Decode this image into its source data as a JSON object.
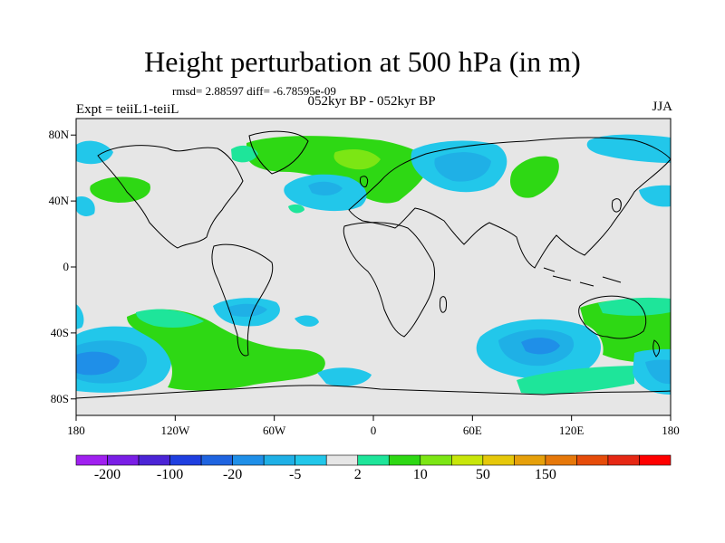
{
  "title": "Height perturbation at 500 hPa (in m)",
  "stats_line": "rmsd= 2.88597 diff= -6.78595e-09",
  "subtitle": "052kyr BP - 052kyr BP",
  "experiment_label": "Expt = teiiL1-teiiL",
  "season_label": "JJA",
  "lat_ticks": [
    {
      "label": "80N",
      "value": 80
    },
    {
      "label": "40N",
      "value": 40
    },
    {
      "label": "0",
      "value": 0
    },
    {
      "label": "40S",
      "value": -40
    },
    {
      "label": "80S",
      "value": -80
    }
  ],
  "lon_ticks": [
    {
      "label": "180",
      "value": -180
    },
    {
      "label": "120W",
      "value": -120
    },
    {
      "label": "60W",
      "value": -60
    },
    {
      "label": "0",
      "value": 0
    },
    {
      "label": "60E",
      "value": 60
    },
    {
      "label": "120E",
      "value": 120
    },
    {
      "label": "180",
      "value": 180
    }
  ],
  "colorbar": {
    "colors": [
      "#a020f0",
      "#7a1ee6",
      "#4b24d6",
      "#1f3fe0",
      "#1f64e0",
      "#1f8fe8",
      "#1fb0e6",
      "#22c7ea",
      "#e6e6e6",
      "#1ee59a",
      "#2ed814",
      "#7ce614",
      "#c8e60a",
      "#e6c80a",
      "#e6a00a",
      "#e6780a",
      "#e64c0a",
      "#e62814",
      "#ff0000"
    ],
    "labels": [
      {
        "text": "-200",
        "boundary": 1
      },
      {
        "text": "-100",
        "boundary": 3
      },
      {
        "text": "-20",
        "boundary": 5
      },
      {
        "text": "-5",
        "boundary": 7
      },
      {
        "text": "2",
        "boundary": 9
      },
      {
        "text": "10",
        "boundary": 11
      },
      {
        "text": "50",
        "boundary": 13
      },
      {
        "text": "150",
        "boundary": 15
      }
    ]
  },
  "map_colors": {
    "background": "#e6e6e6",
    "light_blue": "#22c7ea",
    "mid_blue": "#1fb0e6",
    "deep_blue": "#1f8fe8",
    "teal_green": "#1ee59a",
    "green": "#2ed814",
    "yellow_green": "#7ce614",
    "coast": "#000000"
  }
}
